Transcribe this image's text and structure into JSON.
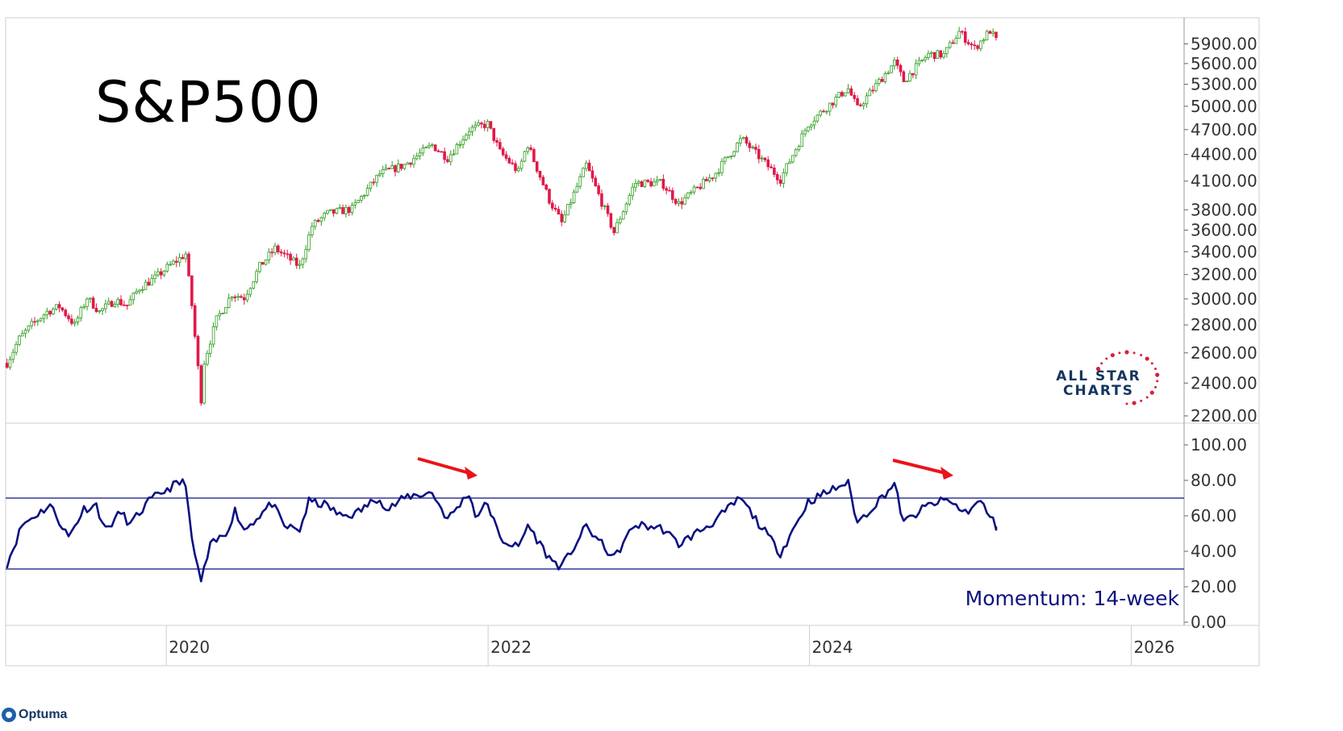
{
  "chart_data": [
    {
      "type": "candlestick",
      "title": "S&P500",
      "scale": "log",
      "ylim": [
        2200,
        6150
      ],
      "y_ticks": [
        "5900.00",
        "5600.00",
        "5300.00",
        "5000.00",
        "4700.00",
        "4400.00",
        "4100.00",
        "3800.00",
        "3600.00",
        "3400.00",
        "3200.00",
        "3000.00",
        "2800.00",
        "2600.00",
        "2400.00",
        "2200.00"
      ],
      "x_ticks": [
        "2020",
        "2022",
        "2024",
        "2026"
      ],
      "xlim": [
        "2019-01-01",
        "2026-05-01"
      ],
      "up_color": "#2e9c1f",
      "down_color": "#e0194a",
      "series": [
        {
          "x": "2019-01-04",
          "close": 2530
        },
        {
          "x": "2019-02-01",
          "close": 2700
        },
        {
          "x": "2019-03-01",
          "close": 2800
        },
        {
          "x": "2019-04-05",
          "close": 2900
        },
        {
          "x": "2019-05-03",
          "close": 2940
        },
        {
          "x": "2019-06-07",
          "close": 2800
        },
        {
          "x": "2019-07-05",
          "close": 3010
        },
        {
          "x": "2019-08-02",
          "close": 2900
        },
        {
          "x": "2019-09-06",
          "close": 2990
        },
        {
          "x": "2019-10-04",
          "close": 2950
        },
        {
          "x": "2019-11-01",
          "close": 3090
        },
        {
          "x": "2019-12-06",
          "close": 3170
        },
        {
          "x": "2020-01-03",
          "close": 3260
        },
        {
          "x": "2020-02-14",
          "close": 3380
        },
        {
          "x": "2020-02-28",
          "close": 2950
        },
        {
          "x": "2020-03-20",
          "close": 2300
        },
        {
          "x": "2020-03-27",
          "close": 2540
        },
        {
          "x": "2020-04-24",
          "close": 2840
        },
        {
          "x": "2020-05-29",
          "close": 3040
        },
        {
          "x": "2020-06-26",
          "close": 3010
        },
        {
          "x": "2020-07-31",
          "close": 3270
        },
        {
          "x": "2020-09-04",
          "close": 3430
        },
        {
          "x": "2020-10-30",
          "close": 3270
        },
        {
          "x": "2020-11-27",
          "close": 3640
        },
        {
          "x": "2020-12-31",
          "close": 3760
        },
        {
          "x": "2021-02-26",
          "close": 3810
        },
        {
          "x": "2021-04-30",
          "close": 4180
        },
        {
          "x": "2021-06-25",
          "close": 4280
        },
        {
          "x": "2021-08-27",
          "close": 4510
        },
        {
          "x": "2021-10-01",
          "close": 4360
        },
        {
          "x": "2021-11-19",
          "close": 4700
        },
        {
          "x": "2021-12-31",
          "close": 4770
        },
        {
          "x": "2022-01-28",
          "close": 4430
        },
        {
          "x": "2022-03-11",
          "close": 4200
        },
        {
          "x": "2022-03-31",
          "close": 4530
        },
        {
          "x": "2022-05-20",
          "close": 3900
        },
        {
          "x": "2022-06-17",
          "close": 3670
        },
        {
          "x": "2022-08-12",
          "close": 4280
        },
        {
          "x": "2022-10-14",
          "close": 3580
        },
        {
          "x": "2022-11-30",
          "close": 4080
        },
        {
          "x": "2023-01-31",
          "close": 4080
        },
        {
          "x": "2023-03-10",
          "close": 3860
        },
        {
          "x": "2023-05-31",
          "close": 4180
        },
        {
          "x": "2023-07-31",
          "close": 4590
        },
        {
          "x": "2023-10-27",
          "close": 4120
        },
        {
          "x": "2023-12-29",
          "close": 4770
        },
        {
          "x": "2024-03-28",
          "close": 5250
        },
        {
          "x": "2024-04-19",
          "close": 4970
        },
        {
          "x": "2024-07-12",
          "close": 5620
        },
        {
          "x": "2024-08-02",
          "close": 5350
        },
        {
          "x": "2024-09-27",
          "close": 5740
        },
        {
          "x": "2024-11-01",
          "close": 5730
        },
        {
          "x": "2024-12-06",
          "close": 6090
        },
        {
          "x": "2025-01-10",
          "close": 5830
        },
        {
          "x": "2025-02-14",
          "close": 6110
        },
        {
          "x": "2025-02-28",
          "close": 5955
        }
      ]
    },
    {
      "type": "line",
      "label": "Momentum: 14-week",
      "ylim": [
        0,
        105
      ],
      "y_ticks": [
        "100.00",
        "80.00",
        "60.00",
        "40.00",
        "20.00",
        "0.00"
      ],
      "reference_lines": [
        70,
        30
      ],
      "line_color": "#0c1180",
      "arrow_color": "#e8141a",
      "series": [
        {
          "x": "2019-01-04",
          "y": 33
        },
        {
          "x": "2019-02-08",
          "y": 55
        },
        {
          "x": "2019-03-08",
          "y": 60
        },
        {
          "x": "2019-04-12",
          "y": 66
        },
        {
          "x": "2019-05-24",
          "y": 48
        },
        {
          "x": "2019-06-28",
          "y": 64
        },
        {
          "x": "2019-07-26",
          "y": 66
        },
        {
          "x": "2019-08-16",
          "y": 52
        },
        {
          "x": "2019-09-20",
          "y": 62
        },
        {
          "x": "2019-10-11",
          "y": 55
        },
        {
          "x": "2019-11-22",
          "y": 68
        },
        {
          "x": "2019-12-27",
          "y": 74
        },
        {
          "x": "2020-01-24",
          "y": 78
        },
        {
          "x": "2020-02-14",
          "y": 79
        },
        {
          "x": "2020-02-28",
          "y": 45
        },
        {
          "x": "2020-03-20",
          "y": 23
        },
        {
          "x": "2020-04-10",
          "y": 43
        },
        {
          "x": "2020-05-15",
          "y": 50
        },
        {
          "x": "2020-06-05",
          "y": 63
        },
        {
          "x": "2020-06-26",
          "y": 52
        },
        {
          "x": "2020-08-28",
          "y": 67
        },
        {
          "x": "2020-09-25",
          "y": 54
        },
        {
          "x": "2020-10-30",
          "y": 52
        },
        {
          "x": "2020-11-20",
          "y": 68
        },
        {
          "x": "2020-12-31",
          "y": 66
        },
        {
          "x": "2021-01-29",
          "y": 60
        },
        {
          "x": "2021-03-05",
          "y": 61
        },
        {
          "x": "2021-04-30",
          "y": 71
        },
        {
          "x": "2021-05-14",
          "y": 63
        },
        {
          "x": "2021-07-02",
          "y": 71
        },
        {
          "x": "2021-08-27",
          "y": 73
        },
        {
          "x": "2021-10-01",
          "y": 58
        },
        {
          "x": "2021-11-19",
          "y": 73
        },
        {
          "x": "2021-12-03",
          "y": 60
        },
        {
          "x": "2021-12-31",
          "y": 67
        },
        {
          "x": "2022-01-28",
          "y": 47
        },
        {
          "x": "2022-03-11",
          "y": 42
        },
        {
          "x": "2022-04-01",
          "y": 55
        },
        {
          "x": "2022-05-20",
          "y": 36
        },
        {
          "x": "2022-06-17",
          "y": 31
        },
        {
          "x": "2022-08-12",
          "y": 54
        },
        {
          "x": "2022-10-14",
          "y": 36
        },
        {
          "x": "2022-11-30",
          "y": 55
        },
        {
          "x": "2023-01-31",
          "y": 53
        },
        {
          "x": "2023-03-10",
          "y": 44
        },
        {
          "x": "2023-05-31",
          "y": 57
        },
        {
          "x": "2023-07-28",
          "y": 70
        },
        {
          "x": "2023-09-01",
          "y": 58
        },
        {
          "x": "2023-10-27",
          "y": 39
        },
        {
          "x": "2023-12-29",
          "y": 68
        },
        {
          "x": "2024-03-28",
          "y": 79
        },
        {
          "x": "2024-04-19",
          "y": 56
        },
        {
          "x": "2024-07-12",
          "y": 78
        },
        {
          "x": "2024-08-02",
          "y": 56
        },
        {
          "x": "2024-09-27",
          "y": 66
        },
        {
          "x": "2024-11-08",
          "y": 69
        },
        {
          "x": "2024-12-20",
          "y": 62
        },
        {
          "x": "2025-01-24",
          "y": 68
        },
        {
          "x": "2025-02-28",
          "y": 54
        }
      ]
    }
  ],
  "footer": {
    "brand": "Optuma"
  },
  "watermark": {
    "line1": "ALL STAR",
    "line2": "CHARTS"
  }
}
